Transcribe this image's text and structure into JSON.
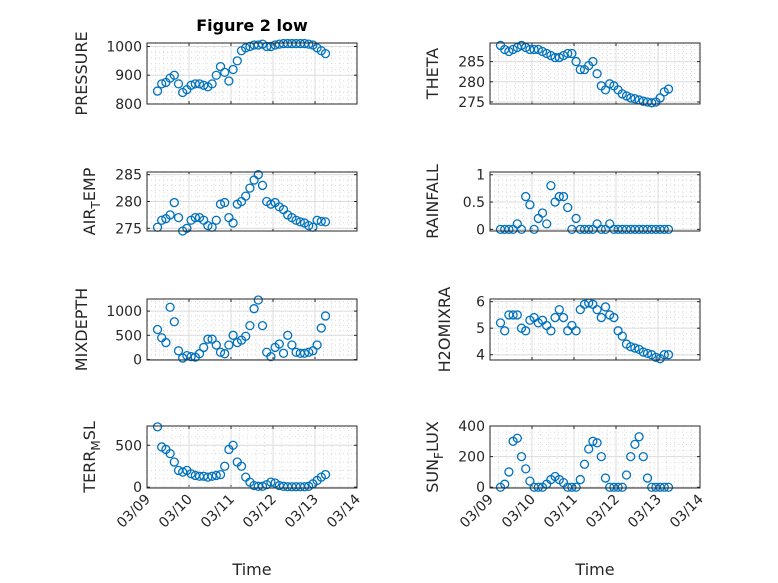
{
  "chart_data": {
    "type": "scatter",
    "title": "Figure 2 low",
    "marker_color": "#0072BD",
    "xlabel": "Time",
    "x_tick_labels": [
      "03/09",
      "03/10",
      "03/11",
      "03/12",
      "03/13",
      "03/14"
    ],
    "x_start_day_offset": 0.25,
    "x_step_days": 0.1,
    "xlim_days": [
      0,
      5
    ],
    "grid": true,
    "panels": [
      {
        "ylabel": "PRESSURE",
        "ylim": [
          800,
          1012
        ],
        "yticks": [
          800,
          900,
          1000
        ],
        "ytick_labels": [
          "800",
          "900",
          "1000"
        ],
        "values": [
          845,
          870,
          875,
          890,
          900,
          870,
          840,
          850,
          865,
          870,
          870,
          865,
          860,
          870,
          900,
          930,
          910,
          880,
          920,
          950,
          985,
          995,
          1000,
          1005,
          1005,
          1008,
          1000,
          1000,
          1005,
          1008,
          1010,
          1010,
          1010,
          1010,
          1010,
          1010,
          1008,
          1005,
          995,
          985,
          975
        ]
      },
      {
        "ylabel": "THETA",
        "ylim": [
          274.5,
          289.6
        ],
        "yticks": [
          275,
          280,
          285
        ],
        "ytick_labels": [
          "275",
          "280",
          "285"
        ],
        "values": [
          289,
          288,
          287.5,
          288,
          288.5,
          289,
          288.5,
          288,
          288,
          288,
          287.5,
          287,
          286.5,
          286,
          286,
          286.5,
          287,
          287,
          285,
          283,
          283,
          284,
          285,
          282,
          279,
          278,
          279.5,
          279,
          278,
          277,
          276.5,
          276,
          275.8,
          275.5,
          275.2,
          275,
          274.8,
          275,
          276,
          277.5,
          278.2
        ]
      },
      {
        "ylabel": "AIR_TEMP",
        "ylim": [
          274.5,
          285.5
        ],
        "yticks": [
          275,
          280,
          285
        ],
        "ytick_labels": [
          "275",
          "280",
          "285"
        ],
        "values": [
          275.2,
          276.5,
          276.8,
          277.5,
          279.8,
          277,
          274.5,
          275,
          276.5,
          277,
          277,
          276.5,
          275.5,
          275.2,
          276.5,
          279.5,
          279.8,
          277,
          276,
          279.5,
          280,
          281,
          282.5,
          284,
          285,
          283,
          280,
          279.5,
          279.8,
          279,
          278.5,
          277.5,
          277,
          276.5,
          276.2,
          276,
          275.5,
          275.2,
          276.5,
          276.3,
          276.2
        ]
      },
      {
        "ylabel": "RAINFALL",
        "ylim": [
          -0.03,
          1.05
        ],
        "yticks": [
          0,
          0.5,
          1
        ],
        "ytick_labels": [
          "0",
          "0.5",
          "1"
        ],
        "values": [
          0,
          0,
          0,
          0,
          0.1,
          0,
          0.6,
          0.45,
          0,
          0.2,
          0.3,
          0.1,
          0.8,
          0.5,
          0.6,
          0.6,
          0.4,
          0,
          0.2,
          0,
          0,
          0,
          0,
          0.1,
          0,
          0,
          0.1,
          0,
          0,
          0,
          0,
          0,
          0,
          0,
          0,
          0,
          0,
          0,
          0,
          0,
          0
        ]
      },
      {
        "ylabel": "MIXDEPTH",
        "ylim": [
          -10,
          1250
        ],
        "yticks": [
          0,
          500,
          1000
        ],
        "ytick_labels": [
          "0",
          "500",
          "1000"
        ],
        "values": [
          620,
          450,
          350,
          1080,
          780,
          180,
          30,
          80,
          60,
          50,
          120,
          250,
          420,
          420,
          300,
          150,
          120,
          300,
          500,
          350,
          400,
          480,
          700,
          1050,
          1230,
          700,
          150,
          60,
          250,
          320,
          130,
          500,
          300,
          150,
          130,
          130,
          150,
          180,
          300,
          650,
          900
        ]
      },
      {
        "ylabel": "H2OMIXRA",
        "ylim": [
          3.8,
          6.1
        ],
        "yticks": [
          4,
          5,
          6
        ],
        "ytick_labels": [
          "4",
          "5",
          "6"
        ],
        "values": [
          5.2,
          4.9,
          5.5,
          5.5,
          5.5,
          5.0,
          4.9,
          5.3,
          5.4,
          5.2,
          5.3,
          5.1,
          4.9,
          5.4,
          5.7,
          5.4,
          4.9,
          5.1,
          4.9,
          5.7,
          5.9,
          5.95,
          5.9,
          5.7,
          5.4,
          5.8,
          5.5,
          5.4,
          4.9,
          4.7,
          4.4,
          4.3,
          4.25,
          4.2,
          4.1,
          4.05,
          4.0,
          3.9,
          3.85,
          4.0,
          4.0
        ]
      },
      {
        "ylabel": "TERR_MSL",
        "ylim": [
          -10,
          730
        ],
        "yticks": [
          0,
          500
        ],
        "ytick_labels": [
          "0",
          "500"
        ],
        "values": [
          720,
          480,
          450,
          400,
          300,
          200,
          180,
          200,
          160,
          140,
          130,
          130,
          120,
          130,
          140,
          150,
          250,
          450,
          500,
          300,
          250,
          120,
          60,
          20,
          10,
          10,
          30,
          60,
          50,
          20,
          10,
          5,
          5,
          5,
          5,
          5,
          10,
          40,
          80,
          120,
          150
        ]
      },
      {
        "ylabel": "SUN_FLUX",
        "ylim": [
          -5,
          400
        ],
        "yticks": [
          0,
          200,
          400
        ],
        "ytick_labels": [
          "0",
          "200",
          "400"
        ],
        "values": [
          0,
          20,
          100,
          300,
          320,
          200,
          120,
          40,
          0,
          0,
          0,
          20,
          50,
          70,
          50,
          30,
          0,
          0,
          0,
          50,
          150,
          250,
          300,
          290,
          200,
          60,
          0,
          0,
          0,
          0,
          80,
          200,
          280,
          330,
          200,
          60,
          0,
          0,
          0,
          0,
          0
        ]
      }
    ]
  }
}
